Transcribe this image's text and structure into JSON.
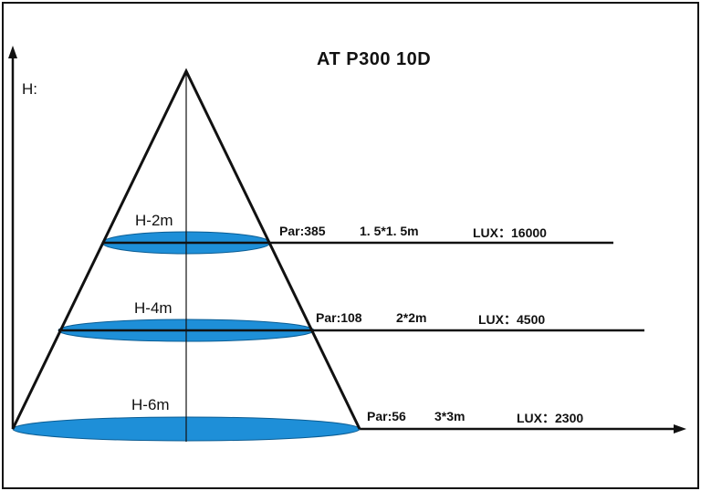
{
  "title": "AT P300 10D",
  "axis": {
    "y_label": "H:"
  },
  "levels": [
    {
      "height_label": "H-2m",
      "par": "Par:385",
      "spot_size": "1. 5*1. 5m",
      "lux": "LUX：16000"
    },
    {
      "height_label": "H-4m",
      "par": "Par:108",
      "spot_size": "2*2m",
      "lux": "LUX：4500"
    },
    {
      "height_label": "H-6m",
      "par": "Par:56",
      "spot_size": "3*3m",
      "lux": "LUX：2300"
    }
  ],
  "colors": {
    "spot_fill": "#1e8fd8",
    "line": "#111111",
    "background": "#ffffff"
  }
}
